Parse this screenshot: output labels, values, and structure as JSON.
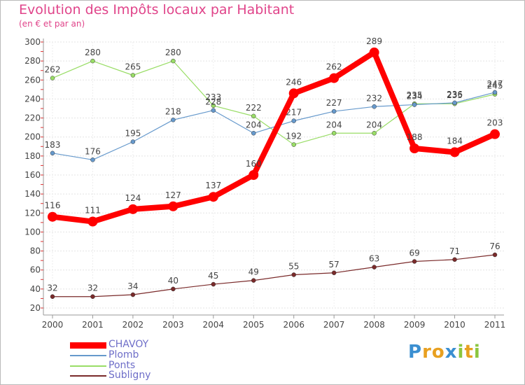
{
  "chart_data": {
    "type": "line",
    "title": "Evolution des Impôts locaux par Habitant",
    "subtitle": "(en € et par an)",
    "x": [
      "2000",
      "2001",
      "2002",
      "2003",
      "2004",
      "2005",
      "2006",
      "2007",
      "2008",
      "2009",
      "2010",
      "2011"
    ],
    "ylim": [
      20,
      300
    ],
    "yticks": [
      20,
      40,
      60,
      80,
      100,
      120,
      140,
      160,
      180,
      200,
      220,
      240,
      260,
      280,
      300
    ],
    "grid": "horizontal",
    "legend_position": "bottom-left",
    "series": [
      {
        "name": "CHAVOY",
        "color": "#ff0000",
        "values": [
          116,
          111,
          124,
          127,
          137,
          160,
          246,
          262,
          289,
          188,
          184,
          203
        ]
      },
      {
        "name": "Plomb",
        "color": "#6699cc",
        "values": [
          183,
          176,
          195,
          218,
          228,
          204,
          217,
          227,
          232,
          234,
          236,
          247
        ]
      },
      {
        "name": "Ponts",
        "color": "#99dd66",
        "values": [
          262,
          280,
          265,
          280,
          233,
          222,
          192,
          204,
          204,
          235,
          235,
          245
        ]
      },
      {
        "name": "Subligny",
        "color": "#7a2a2a",
        "values": [
          32,
          32,
          34,
          40,
          45,
          49,
          55,
          57,
          63,
          69,
          71,
          76
        ]
      }
    ]
  },
  "logo": {
    "letters": [
      "P",
      "r",
      "o",
      "x",
      "i",
      "t",
      "i"
    ],
    "colors": [
      "#3b8fd1",
      "#e8a020",
      "#e8a020",
      "#3b8fd1",
      "#8cc63f",
      "#e8a020",
      "#8cc63f"
    ]
  }
}
